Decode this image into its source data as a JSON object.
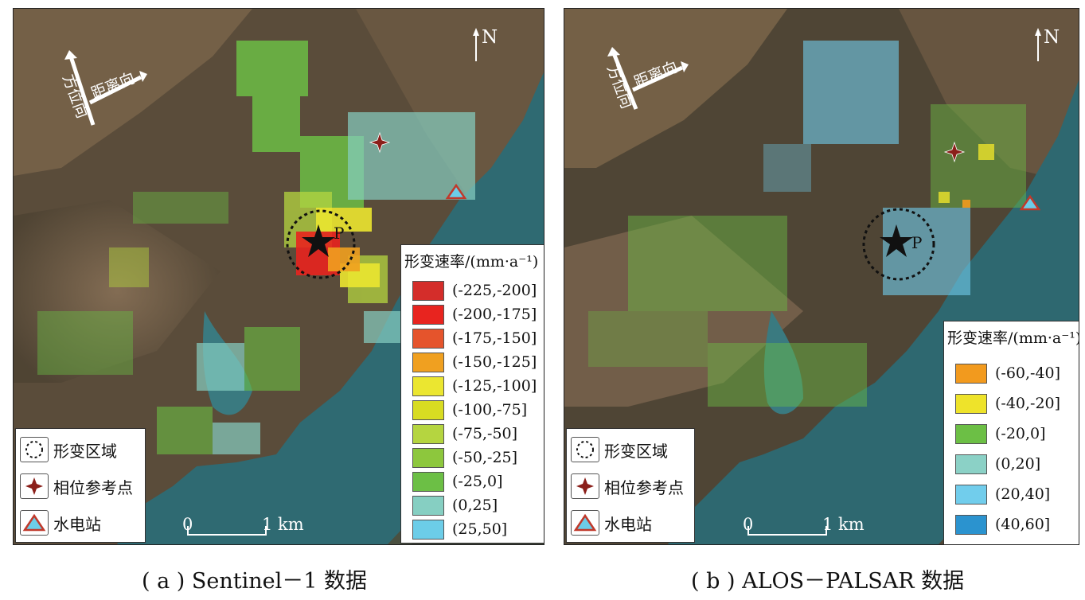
{
  "panels": [
    {
      "id": "a",
      "caption": "( a ) Sentinel－1 数据",
      "legend_title": "形变速率/(mm·a⁻¹)",
      "legend_items": [
        {
          "label": "(-225,-200]",
          "color": "#d42d2a"
        },
        {
          "label": "(-200,-175]",
          "color": "#e8241f"
        },
        {
          "label": "(-175,-150]",
          "color": "#e5542c"
        },
        {
          "label": "(-150,-125]",
          "color": "#f0a020"
        },
        {
          "label": "(-125,-100]",
          "color": "#ebe630"
        },
        {
          "label": "(-100,-75]",
          "color": "#d8dc22"
        },
        {
          "label": "(-75,-50]",
          "color": "#b5d540"
        },
        {
          "label": "(-50,-25]",
          "color": "#8dc73d"
        },
        {
          "label": "(-25,0]",
          "color": "#6cbf45"
        },
        {
          "label": "(0,25]",
          "color": "#86cfc2"
        },
        {
          "label": "(25,50]",
          "color": "#6ccde8"
        }
      ]
    },
    {
      "id": "b",
      "caption": "( b ) ALOS－PALSAR 数据",
      "legend_title": "形变速率/(mm·a⁻¹)",
      "legend_items": [
        {
          "label": "(-60,-40]",
          "color": "#f29a1e"
        },
        {
          "label": "(-40,-20]",
          "color": "#eee32a"
        },
        {
          "label": "(-20,0]",
          "color": "#6cbf45"
        },
        {
          "label": "(0,20]",
          "color": "#8bd1c6"
        },
        {
          "label": "(20,40]",
          "color": "#71cdec"
        },
        {
          "label": "(40,60]",
          "color": "#2b93cf"
        }
      ]
    }
  ],
  "symbols": {
    "deformation_area": "形变区域",
    "phase_reference": "相位参考点",
    "hydropower": "水电站"
  },
  "direction": {
    "range": "距离向",
    "azimuth": "方位向"
  },
  "north": "N",
  "point_label": "P",
  "scale": {
    "zero": "0",
    "one": "1 km"
  },
  "icons": [
    "dashed-circle-icon",
    "four-point-star-icon",
    "triangle-icon",
    "star-icon",
    "north-arrow-icon"
  ]
}
